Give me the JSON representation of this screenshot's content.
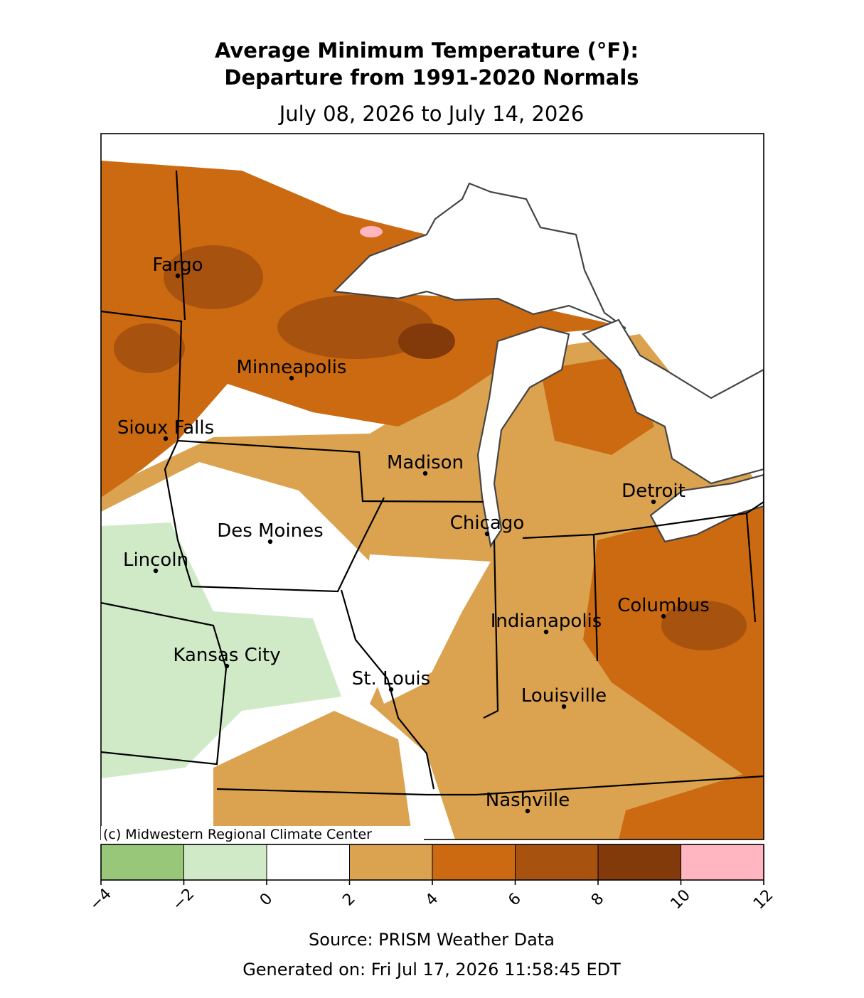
{
  "title": [
    "Average Minimum Temperature (°F):",
    "Departure from 1991-2020 Normals"
  ],
  "subtitle": "July 08, 2026 to July 14, 2026",
  "copyright": "(c) Midwestern Regional Climate Center",
  "cities": [
    "Fargo",
    "Minneapolis",
    "Sioux Falls",
    "Madison",
    "Detroit",
    "Chicago",
    "Des Moines",
    "Lincoln",
    "Columbus",
    "Indianapolis",
    "Kansas City",
    "St. Louis",
    "Louisville",
    "Nashville"
  ],
  "colorbar": {
    "ticks": [
      {
        "value": -4,
        "label": "−4"
      },
      {
        "value": -2,
        "label": "−2"
      },
      0,
      2,
      4,
      6,
      8,
      10,
      12
    ],
    "colors": [
      "#98c77a",
      "#d0eac8",
      "#ffffff",
      "#dba250",
      "#cc6a12",
      "#a8520f",
      "#833a0a",
      "#ffb6c1"
    ]
  },
  "source": "Source: PRISM Weather Data",
  "generated": "Generated on: Fri Jul 17, 2026 11:58:45 EDT"
}
